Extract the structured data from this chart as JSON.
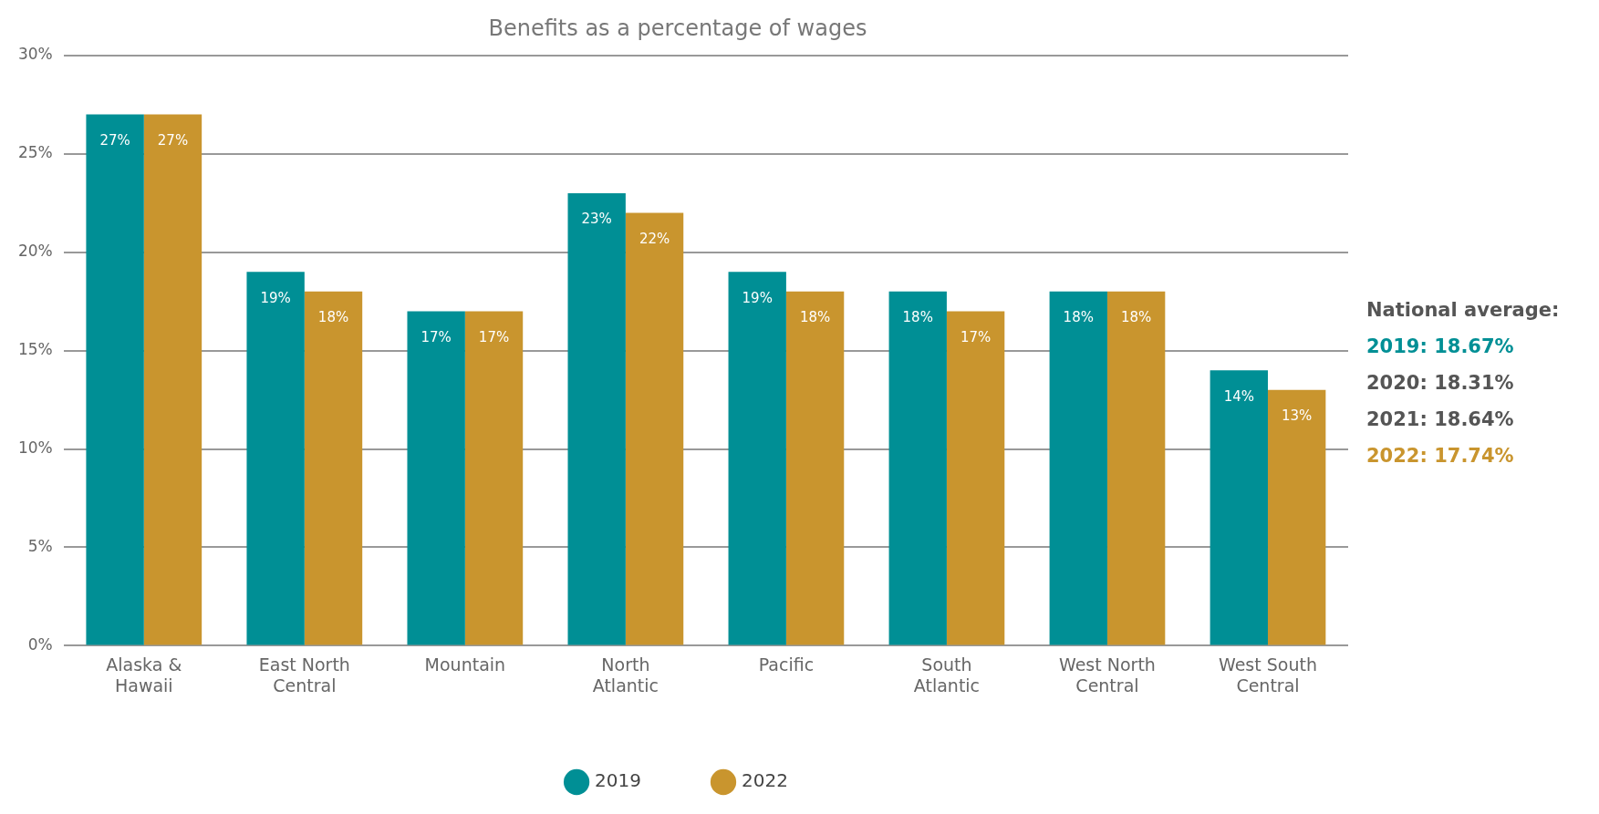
{
  "chart_data": {
    "type": "bar",
    "title": "Benefits as a percentage of wages",
    "categories": [
      "Alaska & Hawaii",
      "East North Central",
      "Mountain",
      "North Atlantic",
      "Pacific",
      "South Atlantic",
      "West North Central",
      "West South Central"
    ],
    "series": [
      {
        "name": "2019",
        "color": "#008f95",
        "values": [
          27,
          19,
          17,
          23,
          19,
          18,
          18,
          14
        ],
        "value_labels": [
          "27%",
          "19%",
          "17%",
          "23%",
          "19%",
          "18%",
          "18%",
          "14%"
        ]
      },
      {
        "name": "2022",
        "color": "#c9952e",
        "values": [
          27,
          18,
          17,
          22,
          18,
          17,
          18,
          13
        ],
        "value_labels": [
          "27%",
          "18%",
          "17%",
          "22%",
          "18%",
          "17%",
          "18%",
          "13%"
        ]
      }
    ],
    "ylim": [
      0,
      30
    ],
    "yticks": [
      {
        "value": 0,
        "label": "0%"
      },
      {
        "value": 5,
        "label": "5%"
      },
      {
        "value": 10,
        "label": "10%"
      },
      {
        "value": 15,
        "label": "15%"
      },
      {
        "value": 20,
        "label": "20%"
      },
      {
        "value": 25,
        "label": "25%"
      },
      {
        "value": 30,
        "label": "30%"
      }
    ],
    "grid": "y",
    "legend": "bottom",
    "annotations": [
      "National average:",
      "2019: 18.67%",
      "2020: 18.31%",
      "2021: 18.64%",
      "2022: 17.74%"
    ]
  }
}
